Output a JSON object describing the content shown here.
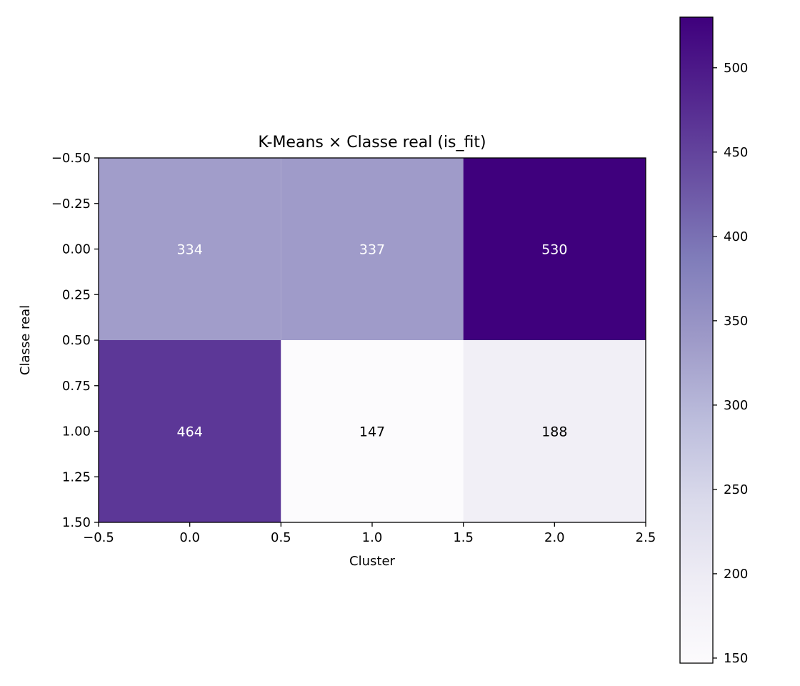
{
  "chart_data": {
    "type": "heatmap",
    "title": "K-Means × Classe real (is_fit)",
    "xlabel": "Cluster",
    "ylabel": "Classe real",
    "xlim": [
      -0.5,
      2.5
    ],
    "ylim": [
      1.5,
      -0.5
    ],
    "x_ticks": [
      "−0.5",
      "0.0",
      "0.5",
      "1.0",
      "1.5",
      "2.0",
      "2.5"
    ],
    "y_ticks": [
      "−0.50",
      "−0.25",
      "0.00",
      "0.25",
      "0.50",
      "0.75",
      "1.00",
      "1.25",
      "1.50"
    ],
    "rows": [
      0,
      1
    ],
    "cols": [
      0,
      1,
      2
    ],
    "values": [
      [
        334,
        337,
        530
      ],
      [
        464,
        147,
        188
      ]
    ],
    "colormap": "Purples",
    "color_range": [
      147,
      530
    ],
    "colorbar_ticks": [
      "150",
      "200",
      "250",
      "300",
      "350",
      "400",
      "450",
      "500"
    ],
    "grid": false
  }
}
